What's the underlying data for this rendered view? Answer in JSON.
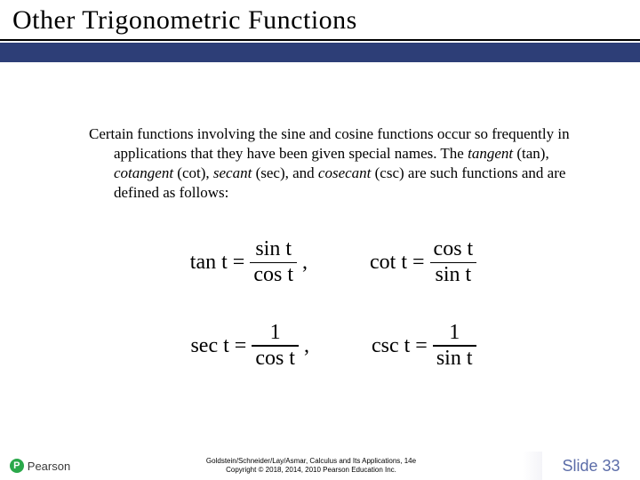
{
  "title": "Other Trigonometric Functions",
  "paragraph": {
    "prefix": "Certain functions involving the sine and cosine functions occur so frequently in applications that they have been given special names. The ",
    "term1": "tangent",
    "abbr1": " (tan), ",
    "term2": "cotangent",
    "abbr2": " (cot), ",
    "term3": "secant",
    "abbr3": " (sec), and ",
    "term4": "cosecant",
    "abbr4": " (csc) are such functions and are defined as follows:"
  },
  "equations": {
    "tan": {
      "lhs": "tan t",
      "eq": "=",
      "num": "sin t",
      "den": "cos t",
      "comma": ","
    },
    "cot": {
      "lhs": "cot t",
      "eq": "=",
      "num": "cos t",
      "den": "sin t"
    },
    "sec": {
      "lhs": "sec t",
      "eq": "=",
      "num": "1",
      "den": "cos t",
      "comma": ","
    },
    "csc": {
      "lhs": "csc t",
      "eq": "=",
      "num": "1",
      "den": "sin t"
    }
  },
  "footer": {
    "publisher": "Pearson",
    "citation": "Goldstein/Schneider/Lay/Asmar, Calculus and Its Applications, 14e",
    "copyright": "Copyright © 2018, 2014, 2010 Pearson Education Inc.",
    "slide_label": "Slide 33"
  },
  "colors": {
    "blue_bar": "#2d3e77",
    "slide_num": "#5b6ca8",
    "badge_green": "#2aa84a"
  }
}
